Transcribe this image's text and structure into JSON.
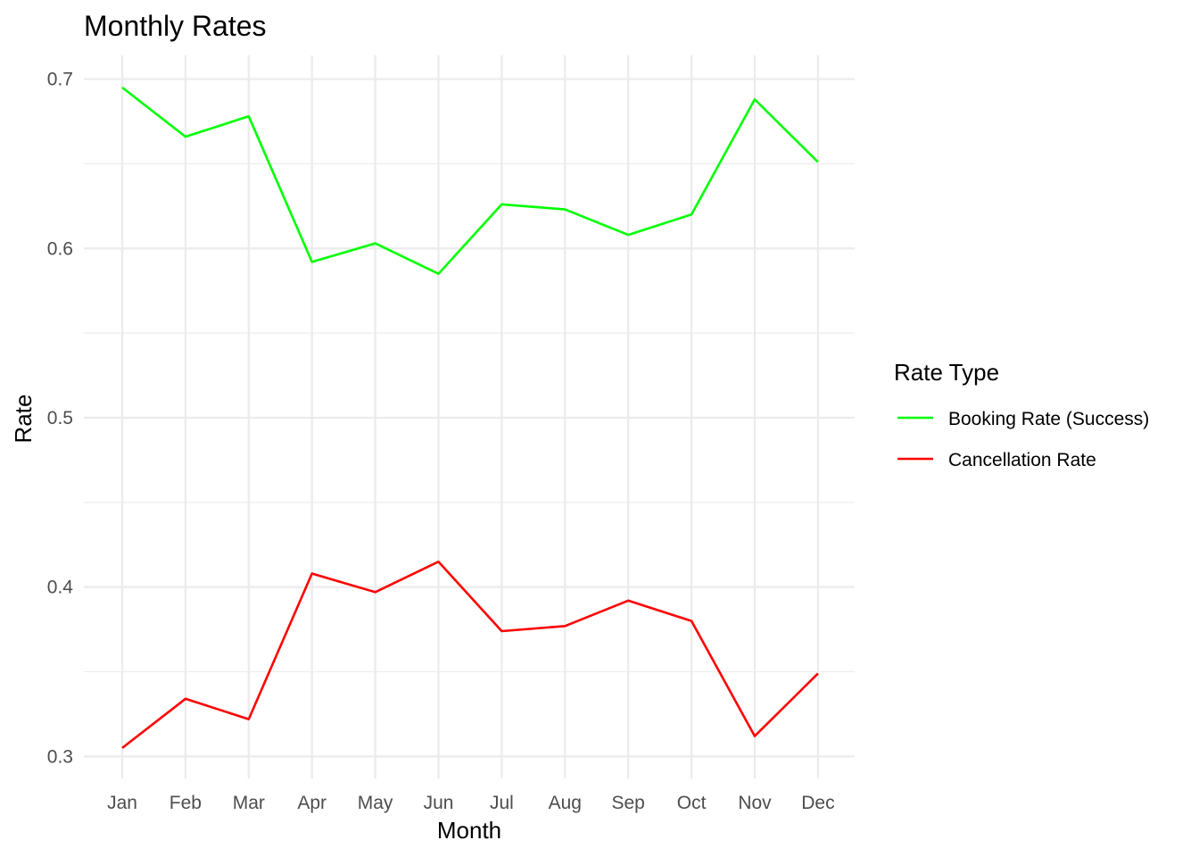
{
  "chart_data": {
    "type": "line",
    "title": "Monthly Rates",
    "xlabel": "Month",
    "ylabel": "Rate",
    "categories": [
      "Jan",
      "Feb",
      "Mar",
      "Apr",
      "May",
      "Jun",
      "Jul",
      "Aug",
      "Sep",
      "Oct",
      "Nov",
      "Dec"
    ],
    "ylim": [
      0.287,
      0.714
    ],
    "yticks": [
      0.3,
      0.4,
      0.5,
      0.6,
      0.7
    ],
    "ytick_labels": [
      "0.3",
      "0.4",
      "0.5",
      "0.6",
      "0.7"
    ],
    "grid": true,
    "legend": {
      "title": "Rate Type",
      "placement": "right"
    },
    "series": [
      {
        "name": "Booking Rate (Success)",
        "color": "#00ff00",
        "values": [
          0.695,
          0.666,
          0.678,
          0.592,
          0.603,
          0.585,
          0.626,
          0.623,
          0.608,
          0.62,
          0.688,
          0.651
        ]
      },
      {
        "name": "Cancellation Rate",
        "color": "#ff0000",
        "values": [
          0.305,
          0.334,
          0.322,
          0.408,
          0.397,
          0.415,
          0.374,
          0.377,
          0.392,
          0.38,
          0.312,
          0.349
        ]
      }
    ]
  }
}
